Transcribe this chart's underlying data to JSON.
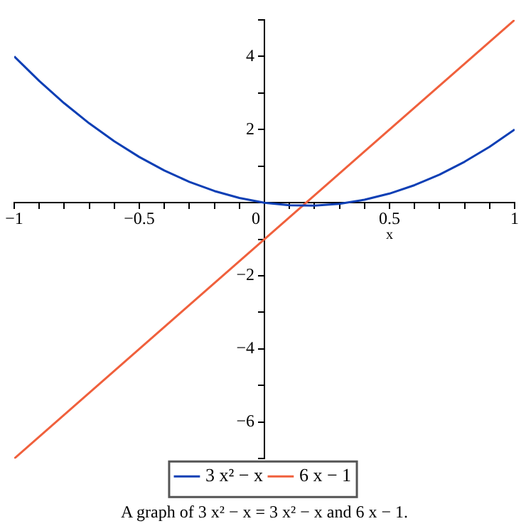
{
  "chart_data": {
    "type": "line",
    "title": "A graph of 3 x² − x = 3 x² − x and 6 x − 1.",
    "xlabel": "x",
    "series": [
      {
        "name": "3 x² − x",
        "color": "#0d3fb5",
        "x": [
          -1,
          -0.9,
          -0.8,
          -0.7,
          -0.6,
          -0.5,
          -0.4,
          -0.3,
          -0.2,
          -0.1,
          0,
          0.1,
          0.2,
          0.3,
          0.4,
          0.5,
          0.6,
          0.7,
          0.8,
          0.9,
          1
        ],
        "values": [
          4,
          3.33,
          2.72,
          2.17,
          1.68,
          1.25,
          0.88,
          0.57,
          0.32,
          0.13,
          0,
          -0.07,
          -0.08,
          -0.03,
          0.08,
          0.25,
          0.48,
          0.77,
          1.12,
          1.53,
          2
        ]
      },
      {
        "name": "6 x − 1",
        "color": "#f0603c",
        "x": [
          -1,
          1
        ],
        "values": [
          -7,
          5
        ]
      }
    ],
    "xlim": [
      -1,
      1
    ],
    "ylim": [
      -7,
      5
    ],
    "xticks": [
      -1,
      {
        "value": -0.9,
        "label": null
      },
      {
        "value": -0.8,
        "label": null
      },
      {
        "value": -0.7,
        "label": null
      },
      {
        "value": -0.6,
        "label": null
      },
      {
        "value": -0.5,
        "label": "−0.5"
      },
      {
        "value": -0.4,
        "label": null
      },
      {
        "value": -0.3,
        "label": null
      },
      {
        "value": -0.2,
        "label": null
      },
      {
        "value": -0.1,
        "label": null
      },
      0,
      {
        "value": 0.1,
        "label": null
      },
      {
        "value": 0.2,
        "label": null
      },
      {
        "value": 0.3,
        "label": null
      },
      {
        "value": 0.4,
        "label": null
      },
      0.5,
      {
        "value": 0.6,
        "label": null
      },
      {
        "value": 0.7,
        "label": null
      },
      {
        "value": 0.8,
        "label": null
      },
      {
        "value": 0.9,
        "label": null
      },
      1
    ],
    "yticks": [
      {
        "value": -7,
        "label": null
      },
      {
        "value": -6,
        "label": "−6"
      },
      {
        "value": -5,
        "label": null
      },
      {
        "value": -4,
        "label": "−4"
      },
      {
        "value": -3,
        "label": null
      },
      {
        "value": -2,
        "label": "−2"
      },
      {
        "value": -1,
        "label": null
      },
      {
        "value": 1,
        "label": null
      },
      2,
      {
        "value": 3,
        "label": null
      },
      4,
      {
        "value": 5,
        "label": null
      }
    ],
    "grid": false,
    "legend": "bottom",
    "marker": "none",
    "line_style": "solid"
  }
}
